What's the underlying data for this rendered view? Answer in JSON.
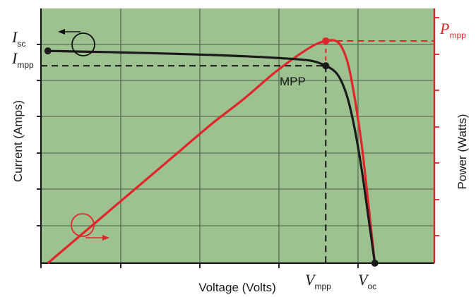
{
  "chart_data": {
    "type": "line",
    "xlabel": "Voltage (Volts)",
    "ylabel_left": "Current (Amps)",
    "ylabel_right": "Power (Watts)",
    "grid": true,
    "background_color": "#9dc290",
    "axis_ranges": {
      "voltage": [
        0,
        1
      ],
      "current": [
        0,
        1.2
      ],
      "power": [
        0,
        1.1
      ]
    },
    "series": [
      {
        "color": "#1a1a1a",
        "axis": "left",
        "x": [
          0,
          0.1,
          0.2,
          0.3,
          0.4,
          0.5,
          0.6,
          0.7,
          0.8,
          0.85,
          0.88,
          0.9,
          0.92,
          0.94,
          0.96,
          0.98,
          1.0
        ],
        "y": [
          1.0,
          0.997,
          0.994,
          0.99,
          0.986,
          0.981,
          0.975,
          0.967,
          0.955,
          0.93,
          0.9,
          0.85,
          0.76,
          0.62,
          0.44,
          0.22,
          0.0
        ]
      },
      {
        "color": "#e0262b",
        "axis": "right",
        "x": [
          0,
          0.1,
          0.2,
          0.3,
          0.4,
          0.5,
          0.6,
          0.7,
          0.8,
          0.85,
          0.88,
          0.9,
          0.92,
          0.94,
          0.96,
          0.98,
          1.0
        ],
        "y": [
          0.0,
          0.12,
          0.24,
          0.36,
          0.48,
          0.6,
          0.71,
          0.83,
          0.93,
          0.96,
          0.96,
          0.93,
          0.85,
          0.7,
          0.51,
          0.26,
          0.0
        ]
      }
    ],
    "points": {
      "isc": {
        "label": "I",
        "sub": "sc",
        "x": 0,
        "y": 1.0
      },
      "impp": {
        "label": "I",
        "sub": "mpp",
        "y": 0.93
      },
      "pmpp": {
        "label": "P",
        "sub": "mpp",
        "x": 0.85,
        "y": 0.96
      },
      "mpp": {
        "label": "MPP",
        "x": 0.85,
        "y": 0.93
      },
      "vmpp": {
        "label": "V",
        "sub": "mpp",
        "x": 0.85
      },
      "voc": {
        "label": "V",
        "sub": "oc",
        "x": 1.0
      }
    },
    "colors": {
      "current": "#1a1a1a",
      "power": "#e0262b",
      "grid": "#5a6f57"
    }
  }
}
